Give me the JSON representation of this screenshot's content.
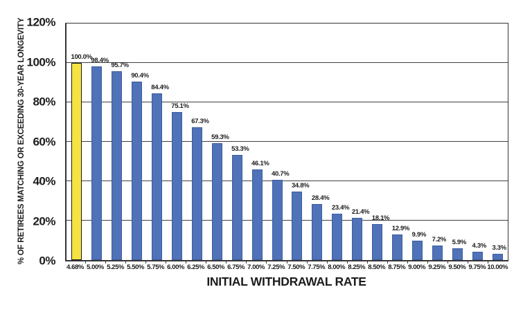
{
  "chart_data": {
    "type": "bar",
    "title": "",
    "xlabel": "INITIAL WITHDRAWAL RATE",
    "ylabel": "% OF RETIREES MATCHING OR EXCEEDING 30-YEAR LONGEVITY",
    "categories": [
      "4.68%",
      "5.00%",
      "5.25%",
      "5.50%",
      "5.75%",
      "6.00%",
      "6.25%",
      "6.50%",
      "6.75%",
      "7.00%",
      "7.25%",
      "7.50%",
      "7.75%",
      "8.00%",
      "8.25%",
      "8.50%",
      "8.75%",
      "9.00%",
      "9.25%",
      "9.50%",
      "9.75%",
      "10.00%"
    ],
    "values": [
      100.0,
      98.4,
      95.7,
      90.4,
      84.4,
      75.1,
      67.3,
      59.3,
      53.3,
      46.1,
      40.7,
      34.8,
      28.4,
      23.4,
      21.4,
      18.1,
      12.9,
      9.9,
      7.2,
      5.9,
      4.3,
      3.3
    ],
    "bar_labels": [
      "100.0%",
      "98.4%",
      "95.7%",
      "90.4%",
      "84.4%",
      "75.1%",
      "67.3%",
      "59.3%",
      "53.3%",
      "46.1%",
      "40.7%",
      "34.8%",
      "28.4%",
      "23.4%",
      "21.4%",
      "18.1%",
      "12.9%",
      "9.9%",
      "7.2%",
      "5.9%",
      "4.3%",
      "3.3%"
    ],
    "ylim": [
      0,
      120
    ],
    "ytick_step": 20,
    "ytick_labels": [
      "120%",
      "100%",
      "80%",
      "60%",
      "40%",
      "20%",
      "0%"
    ],
    "grid": true,
    "legend": "none",
    "highlight_index": 0,
    "colors": {
      "bar": "#4F72B8",
      "bar_border": "#3D5C9E",
      "highlight_bar": "#F4E342",
      "highlight_border": "#1A1A1A",
      "gridline": "#3F3F3F",
      "frame": "#333333",
      "text": "#1C1C1C",
      "background": "#FFFFFF"
    }
  }
}
